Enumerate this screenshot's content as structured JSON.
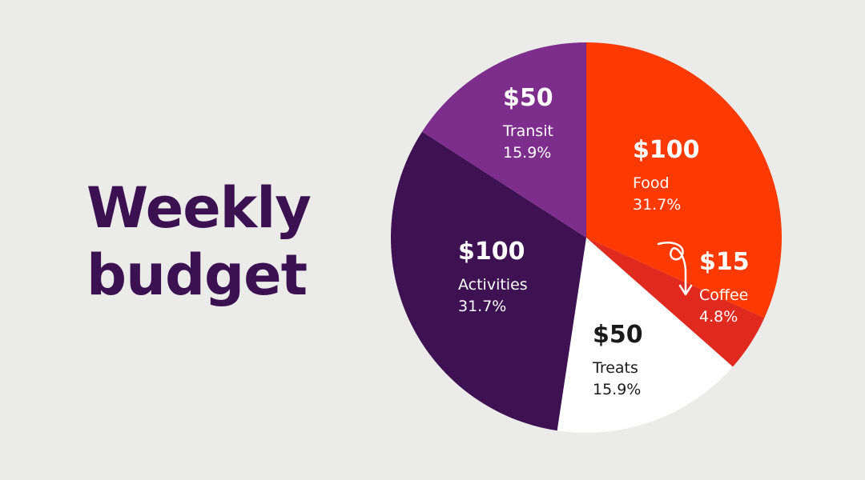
{
  "title_line1": "Weekly",
  "title_line2": "budget",
  "chart_data": {
    "type": "pie",
    "title": "Weekly budget",
    "slices": [
      {
        "label": "Food",
        "value": 100,
        "amount_text": "$100",
        "percent_text": "31.7%",
        "color": "#ff3a00",
        "text_color": "#ffffff"
      },
      {
        "label": "Coffee",
        "value": 15,
        "amount_text": "$15",
        "percent_text": "4.8%",
        "color": "#e12a1f",
        "text_color": "#ffffff"
      },
      {
        "label": "Treats",
        "value": 50,
        "amount_text": "$50",
        "percent_text": "15.9%",
        "color": "#ffffff",
        "text_color": "#1a1a1a"
      },
      {
        "label": "Activities",
        "value": 100,
        "amount_text": "$100",
        "percent_text": "31.7%",
        "color": "#3d1152",
        "text_color": "#ffffff"
      },
      {
        "label": "Transit",
        "value": 50,
        "amount_text": "$50",
        "percent_text": "15.9%",
        "color": "#7d2d8b",
        "text_color": "#ffffff"
      }
    ],
    "start": "12 o'clock",
    "direction": "clockwise",
    "coffee_arrow_color": "#ffffff"
  }
}
